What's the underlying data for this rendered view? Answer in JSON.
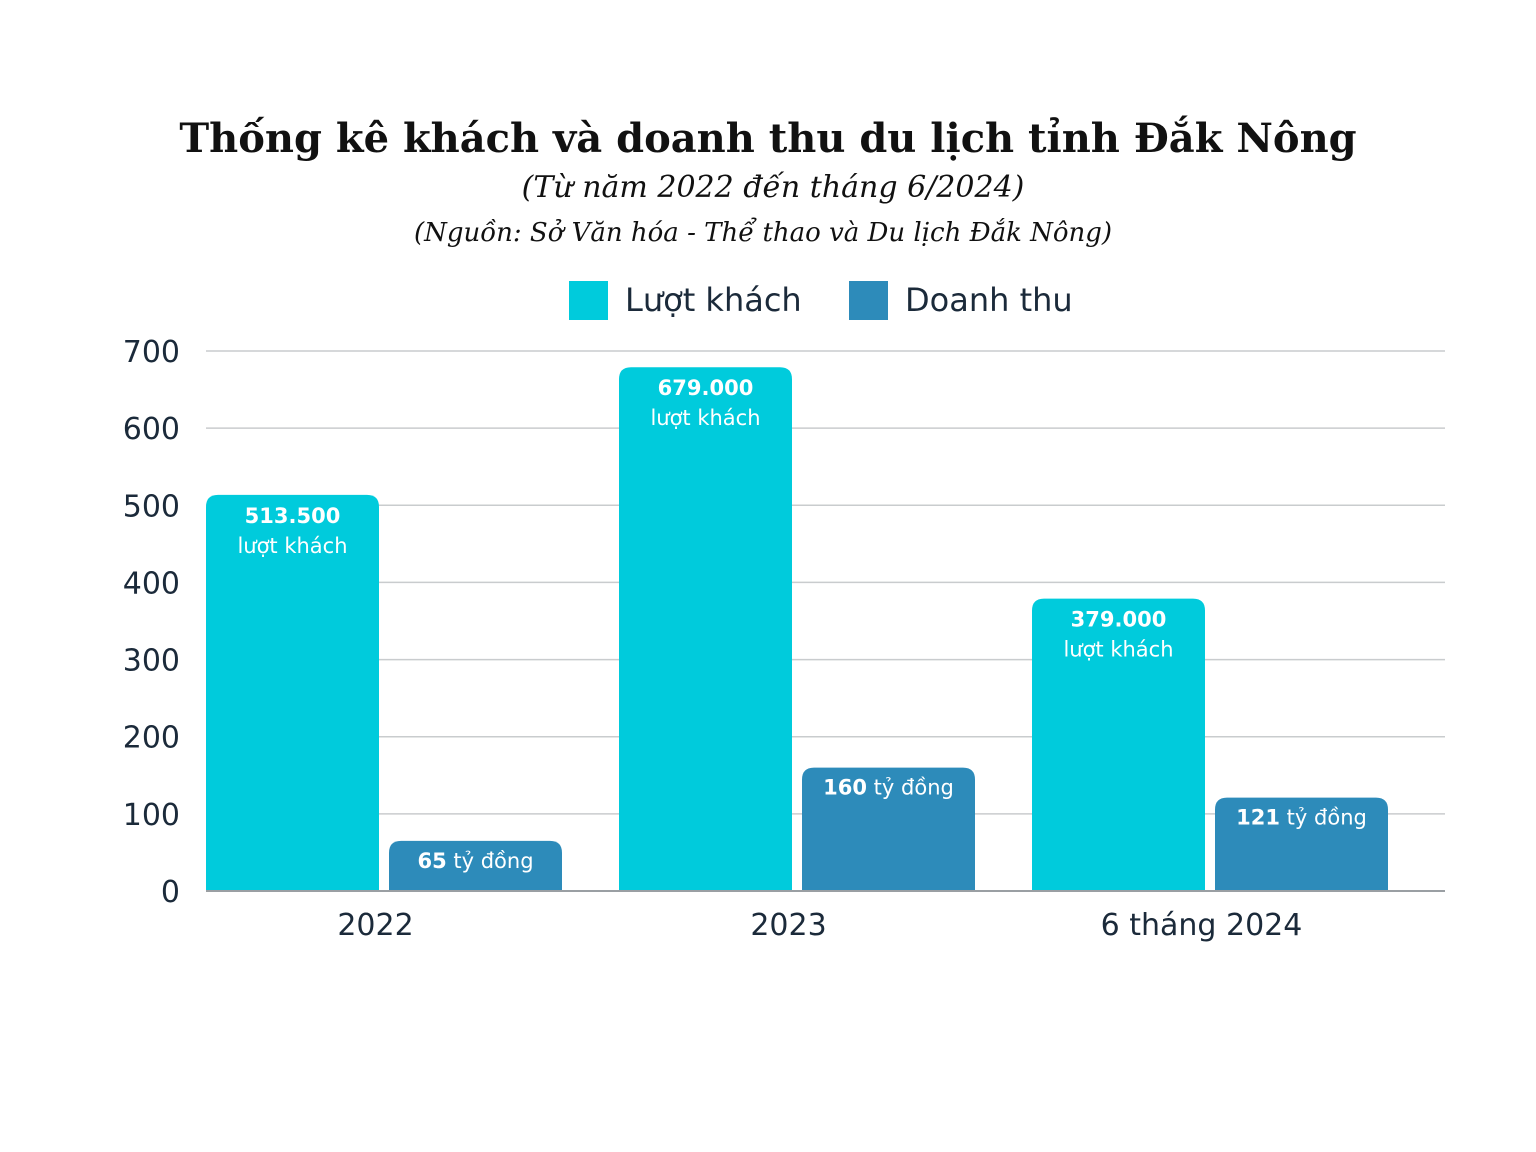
{
  "chart_data": {
    "type": "bar",
    "title": "Thống kê khách và doanh thu du lịch tỉnh Đắk Nông",
    "subtitle": "(Từ năm 2022 đến tháng 6/2024)",
    "source": "(Nguồn: Sở Văn hóa - Thể thao và Du lịch Đắk Nông)",
    "categories": [
      "2022",
      "2023",
      "6 tháng 2024"
    ],
    "series": [
      {
        "name": "Lượt khách",
        "color": "#00CBDC",
        "values": [
          513.5,
          679,
          379
        ],
        "labels": [
          [
            "513.500",
            "lượt khách"
          ],
          [
            "679.000",
            "lượt khách"
          ],
          [
            "379.000",
            "lượt khách"
          ]
        ]
      },
      {
        "name": "Doanh thu",
        "color": "#2D8BBA",
        "values": [
          65,
          160,
          121
        ],
        "labels": [
          [
            "65",
            " tỷ đồng"
          ],
          [
            "160",
            " tỷ đồng"
          ],
          [
            "121",
            " tỷ đồng"
          ]
        ]
      }
    ],
    "ylim": [
      0,
      700
    ],
    "yticks": [
      "0",
      "100",
      "200",
      "300",
      "400",
      "500",
      "600",
      "700"
    ],
    "grid": true,
    "legend": "top-center",
    "xlabel": "",
    "ylabel": ""
  }
}
